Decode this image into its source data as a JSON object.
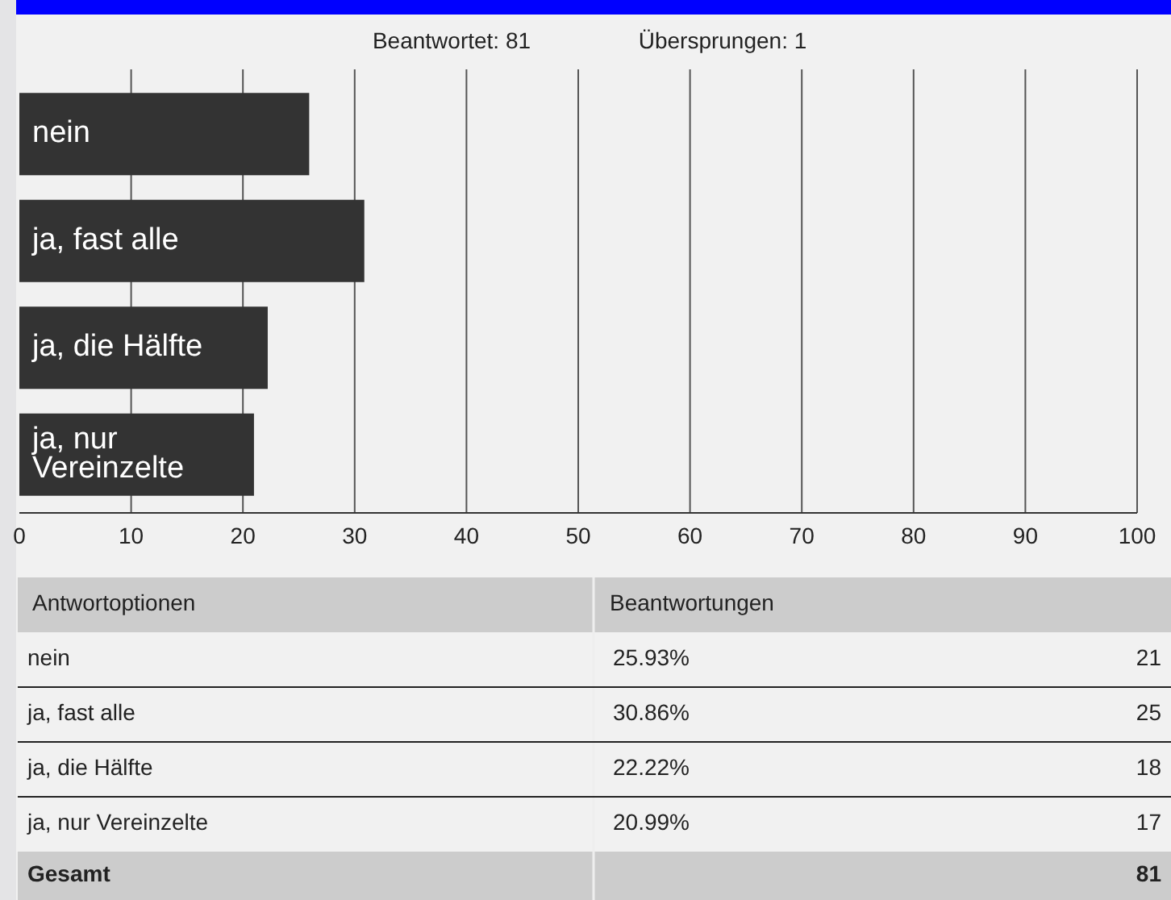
{
  "chart_data": {
    "type": "bar",
    "orientation": "horizontal",
    "categories": [
      "nein",
      "ja, fast alle",
      "ja, die Hälfte",
      "ja, nur Vereinzelte"
    ],
    "values": [
      25.93,
      30.86,
      22.22,
      20.99
    ],
    "color": "#333333",
    "xlim": [
      0,
      100
    ],
    "xticks": [
      0,
      10,
      20,
      30,
      40,
      50,
      60,
      70,
      80,
      90,
      100
    ],
    "grid": "x",
    "annotations": [
      "Beantwortet: 81",
      "Übersprungen: 1",
      "Antwortoptionen",
      "Beantwortungen",
      "21",
      "25",
      "18",
      "17",
      "Gesamt",
      "81",
      "25.93%",
      "30.86%",
      "22.22%",
      "20.99%"
    ]
  }
}
